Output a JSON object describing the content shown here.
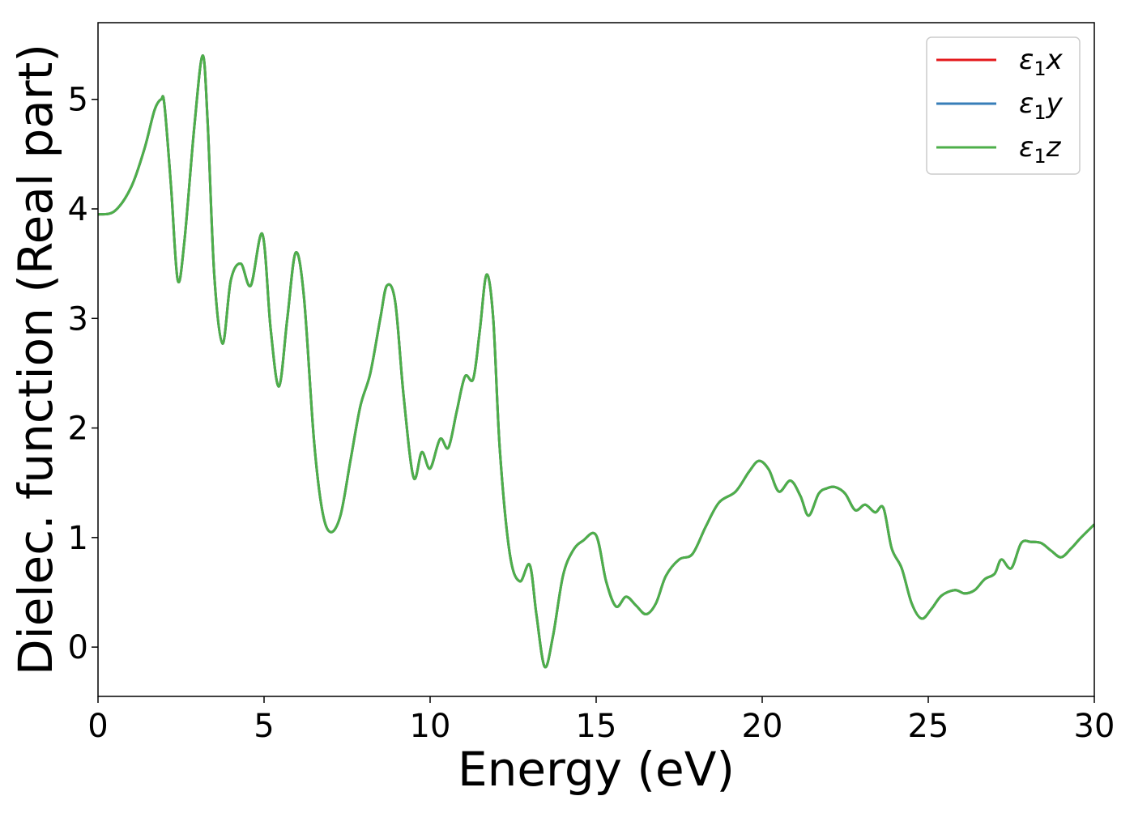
{
  "chart_data": {
    "type": "line",
    "title": "",
    "xlabel": "Energy (eV)",
    "ylabel": "Dielec. function (Real part)",
    "xlim": [
      0,
      30
    ],
    "ylim": [
      -0.45,
      5.7
    ],
    "xticks": [
      0,
      5,
      10,
      15,
      20,
      25,
      30
    ],
    "xtick_labels": [
      "0",
      "5",
      "10",
      "15",
      "20",
      "25",
      "30"
    ],
    "yticks": [
      0,
      1,
      2,
      3,
      4,
      5
    ],
    "ytick_labels": [
      "0",
      "1",
      "2",
      "3",
      "4",
      "5"
    ],
    "grid": false,
    "legend_position": "top-right",
    "series": [
      {
        "name": "ε1x",
        "symbol": "ε",
        "subscript": "1",
        "axis": "x",
        "color": "#e41a1c",
        "same_as": "ε1z"
      },
      {
        "name": "ε1y",
        "symbol": "ε",
        "subscript": "1",
        "axis": "y",
        "color": "#377eb8",
        "same_as": "ε1z"
      },
      {
        "name": "ε1z",
        "symbol": "ε",
        "subscript": "1",
        "axis": "z",
        "color": "#4daf4a"
      }
    ],
    "x": [
      0,
      0.5,
      1.0,
      1.4,
      1.7,
      1.9,
      2.0,
      2.2,
      2.4,
      2.6,
      2.9,
      3.15,
      3.3,
      3.5,
      3.75,
      4.0,
      4.3,
      4.6,
      4.95,
      5.2,
      5.45,
      5.7,
      5.95,
      6.2,
      6.5,
      6.75,
      7.0,
      7.3,
      7.6,
      7.9,
      8.2,
      8.5,
      8.7,
      8.95,
      9.2,
      9.5,
      9.75,
      10.0,
      10.3,
      10.55,
      10.8,
      11.05,
      11.3,
      11.5,
      11.7,
      11.9,
      12.1,
      12.4,
      12.7,
      13.0,
      13.2,
      13.45,
      13.7,
      14.0,
      14.3,
      14.6,
      15.0,
      15.3,
      15.6,
      15.9,
      16.2,
      16.5,
      16.8,
      17.1,
      17.5,
      17.9,
      18.3,
      18.7,
      19.2,
      19.6,
      19.9,
      20.2,
      20.5,
      20.85,
      21.15,
      21.4,
      21.7,
      21.95,
      22.2,
      22.5,
      22.8,
      23.1,
      23.4,
      23.65,
      23.9,
      24.2,
      24.5,
      24.8,
      25.1,
      25.4,
      25.8,
      26.1,
      26.4,
      26.7,
      27.0,
      27.2,
      27.5,
      27.8,
      28.1,
      28.4,
      28.7,
      29.0,
      29.3,
      29.6,
      30.0
    ],
    "values": [
      3.95,
      3.98,
      4.2,
      4.55,
      4.9,
      5.0,
      4.95,
      4.2,
      3.35,
      3.7,
      4.75,
      5.4,
      4.8,
      3.4,
      2.77,
      3.35,
      3.5,
      3.3,
      3.77,
      2.9,
      2.38,
      3.0,
      3.6,
      3.2,
      1.9,
      1.25,
      1.05,
      1.2,
      1.7,
      2.2,
      2.5,
      3.0,
      3.3,
      3.15,
      2.3,
      1.55,
      1.78,
      1.63,
      1.9,
      1.82,
      2.15,
      2.47,
      2.45,
      2.9,
      3.4,
      3.0,
      1.8,
      0.85,
      0.6,
      0.75,
      0.3,
      -0.18,
      0.1,
      0.65,
      0.88,
      0.97,
      1.02,
      0.6,
      0.37,
      0.46,
      0.38,
      0.3,
      0.4,
      0.65,
      0.8,
      0.85,
      1.1,
      1.32,
      1.42,
      1.6,
      1.7,
      1.62,
      1.42,
      1.52,
      1.38,
      1.2,
      1.4,
      1.45,
      1.46,
      1.4,
      1.25,
      1.3,
      1.23,
      1.27,
      0.9,
      0.72,
      0.4,
      0.26,
      0.35,
      0.47,
      0.52,
      0.49,
      0.52,
      0.62,
      0.67,
      0.8,
      0.72,
      0.95,
      0.96,
      0.95,
      0.88,
      0.82,
      0.9,
      1.0,
      1.12
    ]
  }
}
